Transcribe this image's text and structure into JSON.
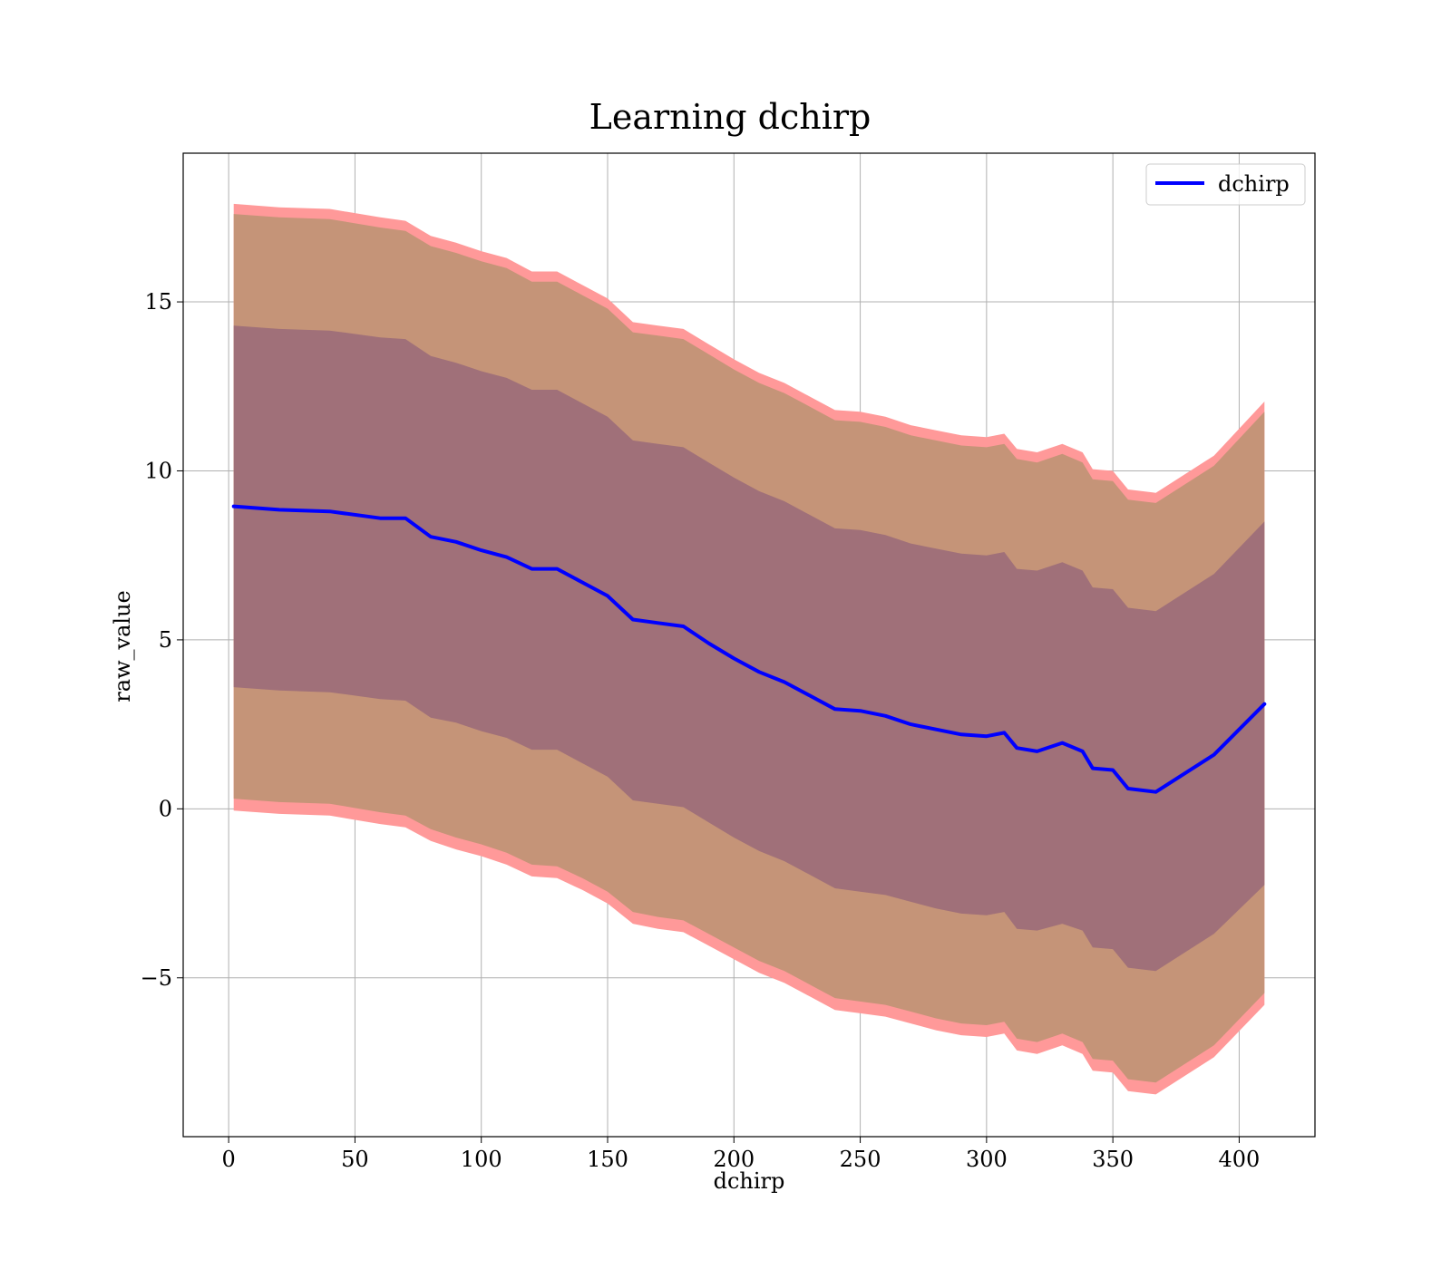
{
  "chart_data": {
    "type": "line",
    "title": "Learning dchirp",
    "xlabel": "dchirp",
    "ylabel": "raw_value",
    "xlim": [
      -18,
      430
    ],
    "ylim": [
      -9.7,
      19.4
    ],
    "xticks": [
      0,
      50,
      100,
      150,
      200,
      250,
      300,
      350,
      400
    ],
    "yticks": [
      -5,
      0,
      5,
      10,
      15
    ],
    "ytick_labels": [
      "−5",
      "0",
      "5",
      "10",
      "15"
    ],
    "grid": true,
    "legend": {
      "position": "top-right",
      "entries": [
        "dchirp"
      ]
    },
    "colors": {
      "line": "#0000ff",
      "outer_band": "#ff9999",
      "middle_band": "#c59478",
      "inner_band": "#a07079"
    },
    "x": [
      2,
      20,
      40,
      60,
      70,
      80,
      90,
      100,
      110,
      120,
      130,
      140,
      150,
      160,
      170,
      180,
      190,
      200,
      210,
      220,
      230,
      240,
      250,
      260,
      270,
      280,
      290,
      300,
      307,
      312,
      320,
      330,
      338,
      342,
      350,
      356,
      367,
      390,
      410
    ],
    "series": [
      {
        "name": "dchirp",
        "values": [
          8.95,
          8.85,
          8.8,
          8.6,
          8.6,
          8.05,
          7.9,
          7.65,
          7.45,
          7.1,
          7.1,
          6.7,
          6.3,
          5.6,
          5.5,
          5.4,
          4.9,
          4.45,
          4.05,
          3.75,
          3.35,
          2.95,
          2.9,
          2.75,
          2.5,
          2.35,
          2.2,
          2.15,
          2.25,
          1.8,
          1.7,
          1.95,
          1.7,
          1.2,
          1.15,
          0.6,
          0.5,
          1.6,
          3.1
        ]
      },
      {
        "name": "",
        "band": "outer",
        "upper": [
          17.9,
          17.8,
          17.75,
          17.5,
          17.4,
          16.95,
          16.75,
          16.5,
          16.3,
          15.9,
          15.9,
          15.5,
          15.1,
          14.4,
          14.3,
          14.2,
          13.75,
          13.3,
          12.9,
          12.6,
          12.2,
          11.8,
          11.75,
          11.6,
          11.35,
          11.2,
          11.05,
          11.0,
          11.1,
          10.65,
          10.55,
          10.8,
          10.55,
          10.05,
          10.0,
          9.45,
          9.35,
          10.45,
          12.05
        ],
        "lower": [
          -0.05,
          -0.15,
          -0.2,
          -0.45,
          -0.55,
          -0.95,
          -1.2,
          -1.4,
          -1.65,
          -2.0,
          -2.05,
          -2.4,
          -2.8,
          -3.4,
          -3.55,
          -3.65,
          -4.05,
          -4.45,
          -4.85,
          -5.15,
          -5.55,
          -5.95,
          -6.05,
          -6.15,
          -6.35,
          -6.55,
          -6.7,
          -6.75,
          -6.65,
          -7.15,
          -7.25,
          -7.0,
          -7.25,
          -7.75,
          -7.8,
          -8.35,
          -8.45,
          -7.35,
          -5.8
        ]
      },
      {
        "name": "",
        "band": "middle",
        "upper": [
          17.6,
          17.5,
          17.45,
          17.2,
          17.1,
          16.65,
          16.45,
          16.2,
          16.0,
          15.6,
          15.6,
          15.2,
          14.8,
          14.1,
          14.0,
          13.9,
          13.45,
          13.0,
          12.6,
          12.3,
          11.9,
          11.5,
          11.45,
          11.3,
          11.05,
          10.9,
          10.75,
          10.7,
          10.8,
          10.35,
          10.25,
          10.5,
          10.25,
          9.75,
          9.7,
          9.15,
          9.05,
          10.15,
          11.75
        ],
        "lower": [
          0.3,
          0.2,
          0.15,
          -0.1,
          -0.2,
          -0.6,
          -0.85,
          -1.05,
          -1.3,
          -1.65,
          -1.7,
          -2.05,
          -2.45,
          -3.05,
          -3.2,
          -3.3,
          -3.7,
          -4.1,
          -4.5,
          -4.8,
          -5.2,
          -5.6,
          -5.7,
          -5.8,
          -6.0,
          -6.2,
          -6.35,
          -6.4,
          -6.3,
          -6.8,
          -6.9,
          -6.65,
          -6.9,
          -7.4,
          -7.45,
          -8.0,
          -8.1,
          -7.0,
          -5.45
        ]
      },
      {
        "name": "",
        "band": "inner",
        "upper": [
          14.3,
          14.2,
          14.15,
          13.95,
          13.9,
          13.4,
          13.2,
          12.95,
          12.75,
          12.4,
          12.4,
          12.0,
          11.6,
          10.9,
          10.8,
          10.7,
          10.25,
          9.8,
          9.4,
          9.1,
          8.7,
          8.3,
          8.25,
          8.1,
          7.85,
          7.7,
          7.55,
          7.5,
          7.6,
          7.1,
          7.05,
          7.3,
          7.05,
          6.55,
          6.5,
          5.95,
          5.85,
          6.95,
          8.5
        ],
        "lower": [
          3.6,
          3.5,
          3.45,
          3.25,
          3.2,
          2.7,
          2.55,
          2.3,
          2.1,
          1.75,
          1.75,
          1.35,
          0.95,
          0.25,
          0.15,
          0.05,
          -0.4,
          -0.85,
          -1.25,
          -1.55,
          -1.95,
          -2.35,
          -2.45,
          -2.55,
          -2.75,
          -2.95,
          -3.1,
          -3.15,
          -3.05,
          -3.55,
          -3.6,
          -3.4,
          -3.6,
          -4.1,
          -4.15,
          -4.7,
          -4.8,
          -3.7,
          -2.25
        ]
      }
    ]
  }
}
